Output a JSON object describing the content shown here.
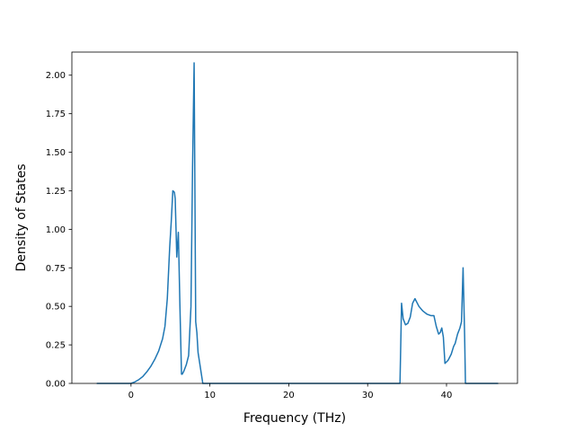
{
  "chart_data": {
    "type": "line",
    "title": "",
    "xlabel": "Frequency (THz)",
    "ylabel": "Density of States",
    "xlim": [
      -7.5,
      49
    ],
    "ylim": [
      0,
      2.15
    ],
    "grid": false,
    "legend": "none",
    "line_color": "#1f77b4",
    "x_ticks": [
      {
        "value": 0,
        "label": "0"
      },
      {
        "value": 10,
        "label": "10"
      },
      {
        "value": 20,
        "label": "20"
      },
      {
        "value": 30,
        "label": "30"
      },
      {
        "value": 40,
        "label": "40"
      }
    ],
    "y_ticks": [
      {
        "value": 0.0,
        "label": "0.00"
      },
      {
        "value": 0.25,
        "label": "0.25"
      },
      {
        "value": 0.5,
        "label": "0.50"
      },
      {
        "value": 0.75,
        "label": "0.75"
      },
      {
        "value": 1.0,
        "label": "1.00"
      },
      {
        "value": 1.25,
        "label": "1.25"
      },
      {
        "value": 1.5,
        "label": "1.50"
      },
      {
        "value": 1.75,
        "label": "1.75"
      },
      {
        "value": 2.0,
        "label": "2.00"
      }
    ],
    "series": [
      {
        "x": [
          -4.3,
          -1.0,
          0.0,
          0.5,
          1.0,
          1.5,
          2.0,
          2.5,
          3.0,
          3.5,
          4.0,
          4.3,
          4.6,
          4.9,
          5.1,
          5.3,
          5.5,
          5.6,
          5.8,
          6.0,
          6.2,
          6.4,
          6.5,
          6.7,
          7.0,
          7.3,
          7.6,
          7.8,
          8.0,
          8.2,
          8.35,
          8.5,
          9.1,
          9.5,
          20.0,
          34.1,
          34.3,
          34.5,
          34.8,
          35.1,
          35.4,
          35.7,
          36.0,
          36.5,
          37.0,
          37.5,
          38.0,
          38.4,
          38.7,
          39.0,
          39.2,
          39.4,
          39.6,
          39.8,
          40.2,
          40.6,
          40.9,
          41.1,
          41.4,
          41.7,
          41.9,
          42.1,
          42.3,
          42.4,
          43.0,
          46.5
        ],
        "y": [
          0.0,
          0.0,
          0.0,
          0.01,
          0.025,
          0.045,
          0.075,
          0.11,
          0.155,
          0.21,
          0.29,
          0.37,
          0.55,
          0.88,
          1.05,
          1.25,
          1.24,
          1.2,
          0.82,
          0.98,
          0.5,
          0.06,
          0.06,
          0.08,
          0.12,
          0.18,
          0.5,
          1.4,
          2.08,
          0.4,
          0.33,
          0.2,
          0.0,
          0.0,
          0.0,
          0.0,
          0.52,
          0.42,
          0.38,
          0.39,
          0.43,
          0.52,
          0.55,
          0.5,
          0.47,
          0.45,
          0.44,
          0.44,
          0.37,
          0.32,
          0.33,
          0.36,
          0.3,
          0.13,
          0.15,
          0.19,
          0.24,
          0.26,
          0.32,
          0.36,
          0.4,
          0.75,
          0.3,
          0.0,
          0.0,
          0.0
        ]
      }
    ]
  }
}
